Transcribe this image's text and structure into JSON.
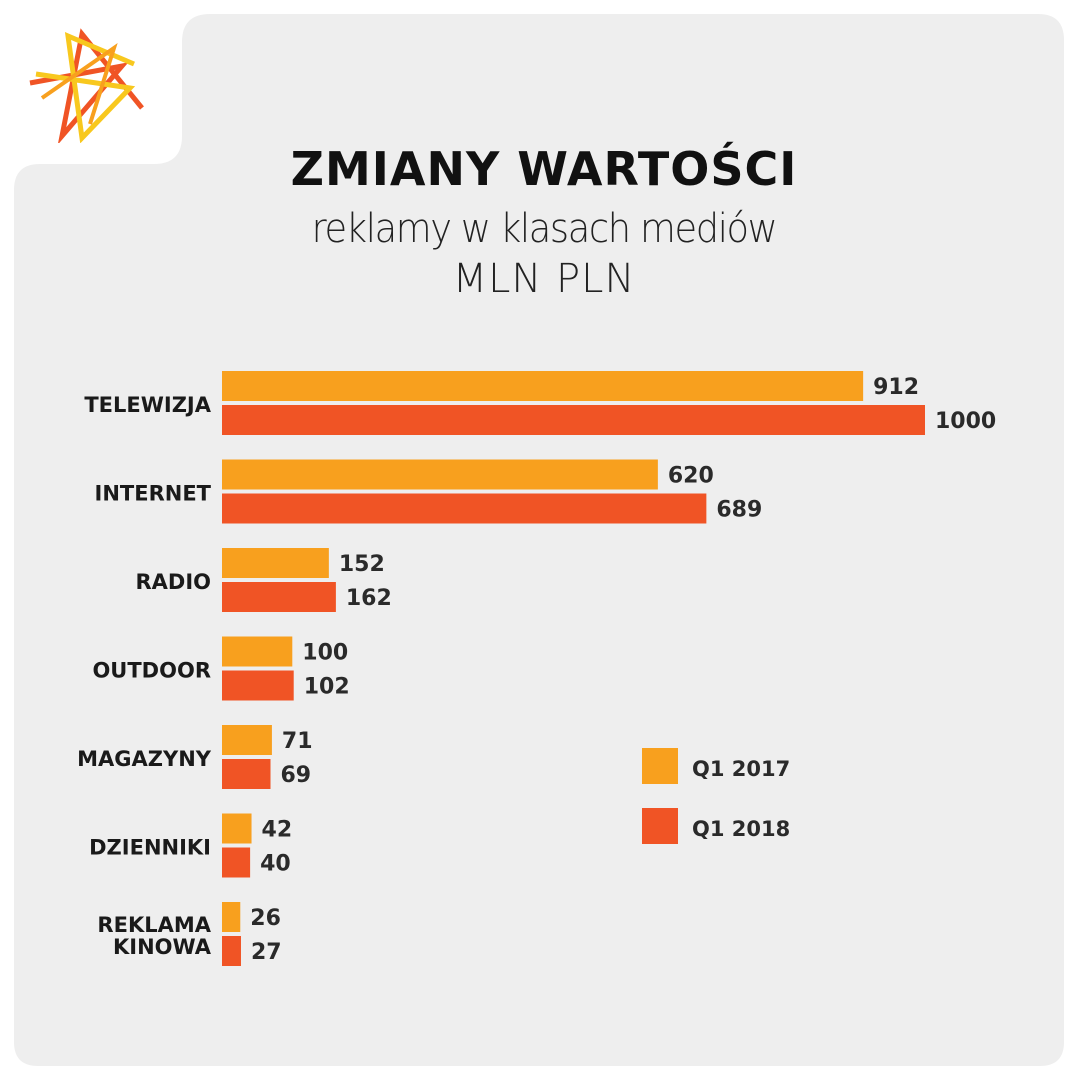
{
  "title": "ZMIANY WARTOŚCI",
  "subtitle": "reklamy w klasach mediów",
  "unit": "MLN PLN",
  "colors": {
    "q1_2017": "#f8a01e",
    "q1_2018": "#f05425",
    "panel": "#eeeeee"
  },
  "logo_icon": "star-burst-icon",
  "chart_data": {
    "type": "bar",
    "orientation": "horizontal",
    "categories": [
      "TELEWIZJA",
      "INTERNET",
      "RADIO",
      "OUTDOOR",
      "MAGAZYNY",
      "DZIENNIKI",
      "REKLAMA KINOWA"
    ],
    "category_lines": [
      [
        "TELEWIZJA"
      ],
      [
        "INTERNET"
      ],
      [
        "RADIO"
      ],
      [
        "OUTDOOR"
      ],
      [
        "MAGAZYNY"
      ],
      [
        "DZIENNIKI"
      ],
      [
        "REKLAMA",
        "KINOWA"
      ]
    ],
    "series": [
      {
        "name": "Q1 2017",
        "values": [
          912,
          620,
          152,
          100,
          71,
          42,
          26
        ]
      },
      {
        "name": "Q1 2018",
        "values": [
          1000,
          689,
          162,
          102,
          69,
          40,
          27
        ]
      }
    ],
    "xlim": [
      0,
      1000
    ],
    "grid": false,
    "legend": "center-right"
  }
}
